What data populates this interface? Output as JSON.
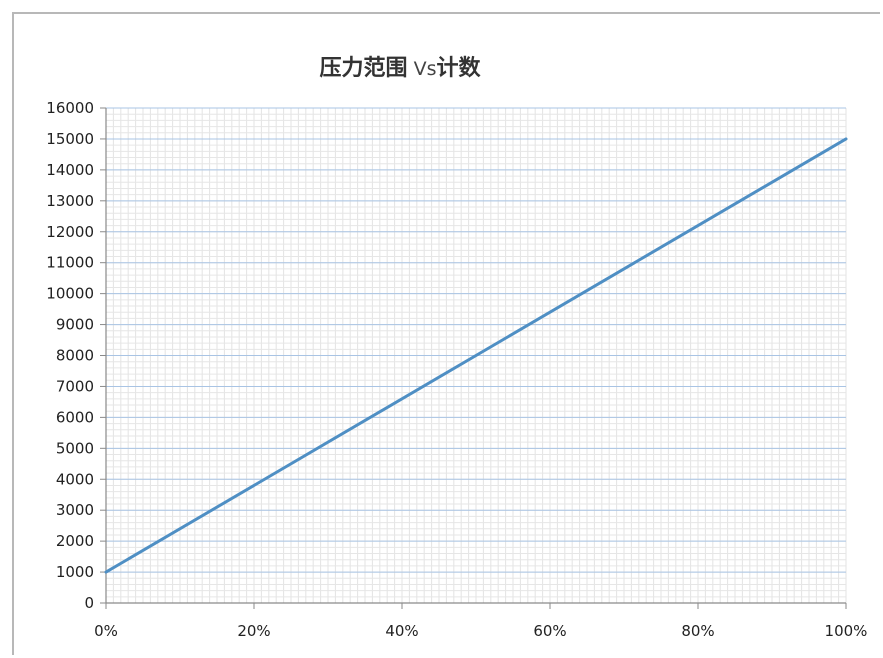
{
  "chart_data": {
    "type": "line",
    "title": {
      "part1": "压力范围",
      "part2": " Vs",
      "part3": "计数"
    },
    "xlabel": "",
    "ylabel": "",
    "x_ticks": [
      "0%",
      "20%",
      "40%",
      "60%",
      "80%",
      "100%"
    ],
    "y_ticks": [
      "0",
      "1000",
      "2000",
      "3000",
      "4000",
      "5000",
      "6000",
      "7000",
      "8000",
      "9000",
      "10000",
      "11000",
      "12000",
      "13000",
      "14000",
      "15000",
      "16000"
    ],
    "xlim": [
      0,
      100
    ],
    "ylim": [
      0,
      16000
    ],
    "grid": true,
    "legend": "none",
    "series": [
      {
        "x": [
          0,
          100
        ],
        "y": [
          1000,
          15000
        ],
        "color": "#4f8fc4"
      }
    ]
  }
}
